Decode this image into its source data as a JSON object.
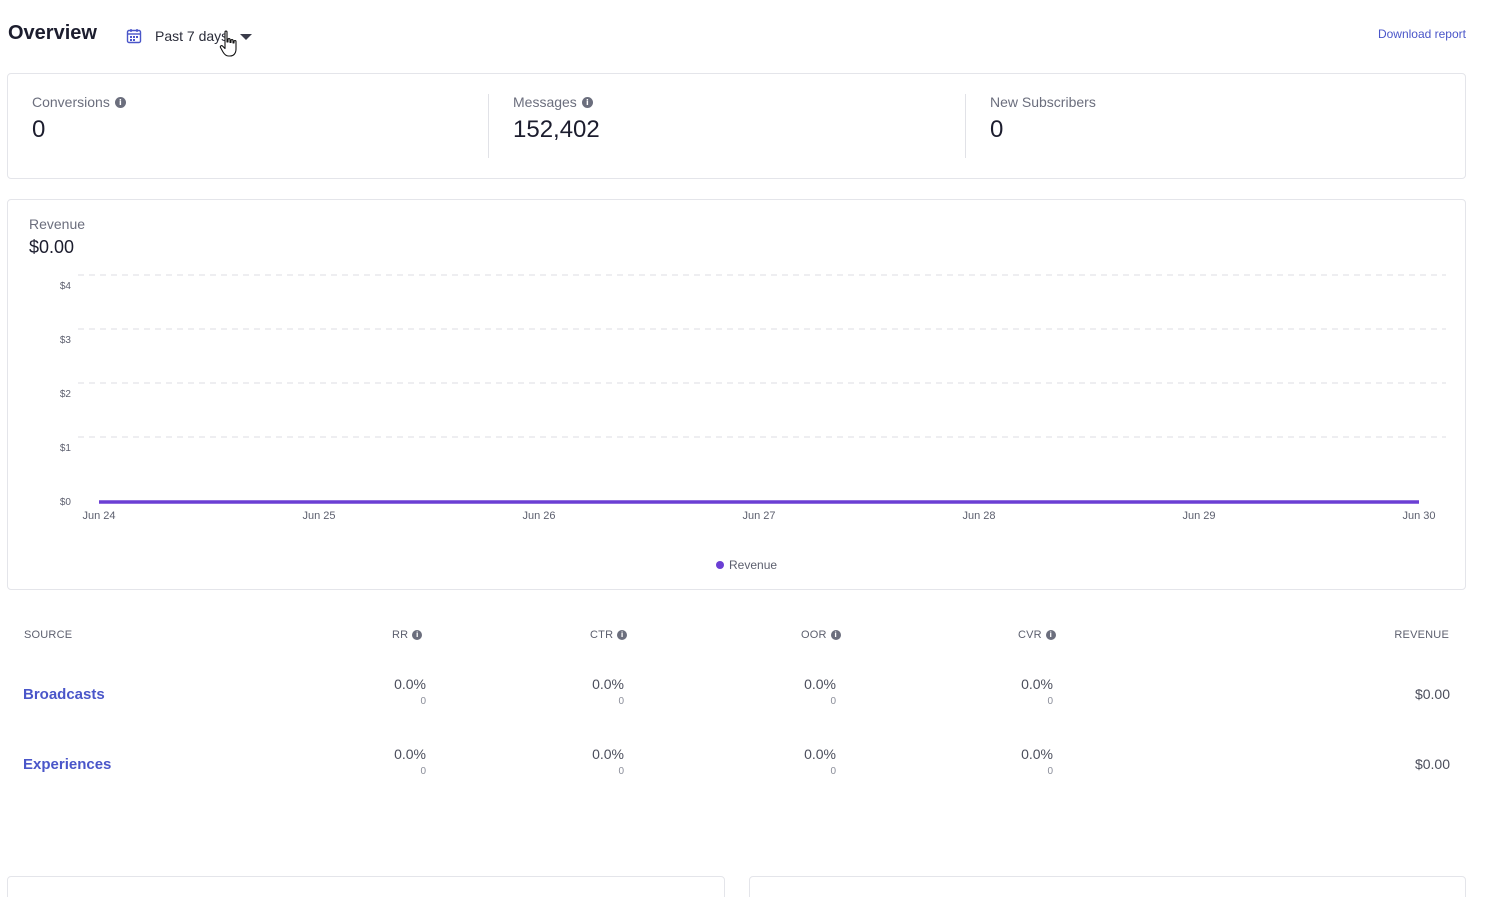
{
  "header": {
    "title": "Overview",
    "date_range": "Past 7 days",
    "download_label": "Download report"
  },
  "stats": [
    {
      "label": "Conversions",
      "value": "0",
      "has_info": true
    },
    {
      "label": "Messages",
      "value": "152,402",
      "has_info": true
    },
    {
      "label": "New Subscribers",
      "value": "0",
      "has_info": false
    }
  ],
  "revenue": {
    "title": "Revenue",
    "total": "$0.00"
  },
  "chart_data": {
    "type": "line",
    "x": [
      "Jun 24",
      "Jun 25",
      "Jun 26",
      "Jun 27",
      "Jun 28",
      "Jun 29",
      "Jun 30"
    ],
    "series": [
      {
        "name": "Revenue",
        "values": [
          0,
          0,
          0,
          0,
          0,
          0,
          0
        ],
        "color": "#6b3fd4"
      }
    ],
    "y_ticks": [
      "$0",
      "$1",
      "$2",
      "$3",
      "$4"
    ],
    "ylim": [
      0,
      4
    ],
    "grid": true,
    "legend_position": "bottom-center"
  },
  "table": {
    "headers": {
      "source": "SOURCE",
      "rr": "RR",
      "ctr": "CTR",
      "oor": "OOR",
      "cvr": "CVR",
      "revenue": "REVENUE"
    },
    "rows": [
      {
        "source": "Broadcasts",
        "rr": {
          "pct": "0.0%",
          "count": "0"
        },
        "ctr": {
          "pct": "0.0%",
          "count": "0"
        },
        "oor": {
          "pct": "0.0%",
          "count": "0"
        },
        "cvr": {
          "pct": "0.0%",
          "count": "0"
        },
        "revenue": "$0.00"
      },
      {
        "source": "Experiences",
        "rr": {
          "pct": "0.0%",
          "count": "0"
        },
        "ctr": {
          "pct": "0.0%",
          "count": "0"
        },
        "oor": {
          "pct": "0.0%",
          "count": "0"
        },
        "cvr": {
          "pct": "0.0%",
          "count": "0"
        },
        "revenue": "$0.00"
      }
    ]
  },
  "colors": {
    "accent": "#4a56c9",
    "series": "#6b3fd4"
  }
}
